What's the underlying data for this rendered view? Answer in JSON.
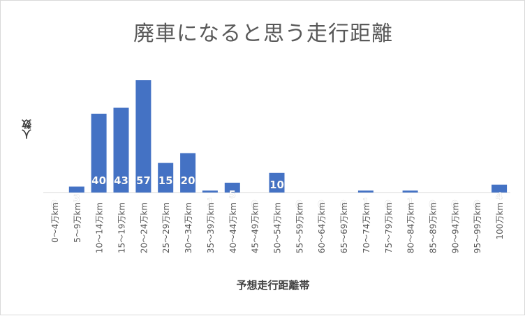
{
  "chart_data": {
    "type": "bar",
    "title": "廃車になると思う走行距離",
    "xlabel": "予想走行距離帯",
    "ylabel": "人数",
    "categories": [
      "0～4万km",
      "5～9万km",
      "10～14万km",
      "15～19万km",
      "20～24万km",
      "25～29万km",
      "30～34万km",
      "35～39万km",
      "40～44万km",
      "45～49万km",
      "50～54万km",
      "55～59万km",
      "60～64万km",
      "65～69万km",
      "70～74万km",
      "75～79万km",
      "80～84万km",
      "85～89万km",
      "90～94万km",
      "95～99万km",
      "100万km"
    ],
    "values": [
      0,
      3,
      40,
      43,
      57,
      15,
      20,
      1,
      5,
      0,
      10,
      0,
      0,
      0,
      1,
      0,
      1,
      0,
      0,
      0,
      4
    ],
    "ylim": [
      0,
      57
    ],
    "grid": false,
    "legend": "none",
    "bar_color": "#4472c4",
    "label_color": "#ffffff"
  }
}
